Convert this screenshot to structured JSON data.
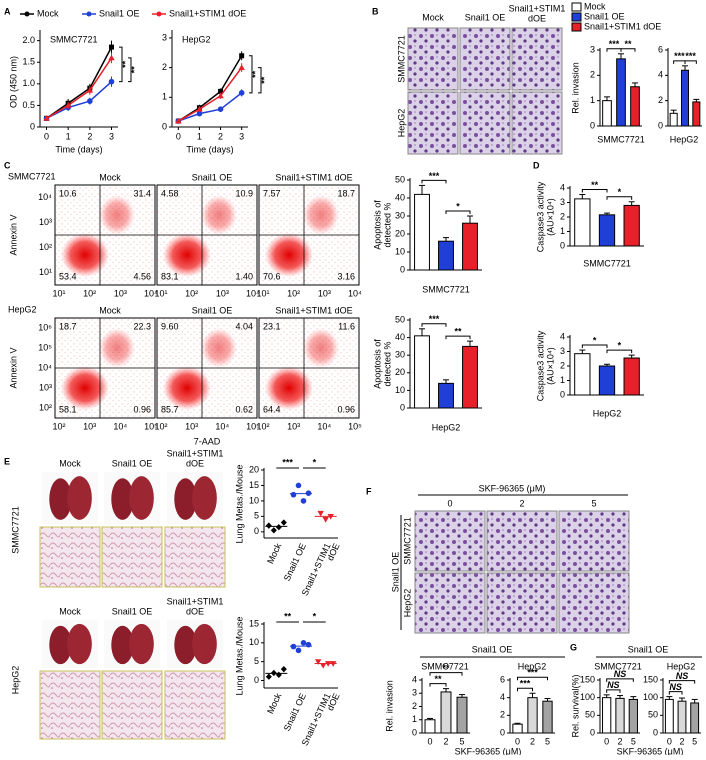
{
  "A": {
    "label": "A",
    "ylabel": "OD (450 nm)",
    "legend": [
      {
        "name": "Mock",
        "color": "#000000"
      },
      {
        "name": "Snail1 OE",
        "color": "#1f3fd6"
      },
      {
        "name": "Snail1+STIM1 dOE",
        "color": "#e8202a"
      }
    ],
    "charts": [
      {
        "title": "SMMC7721",
        "xlabel": "Time (days)",
        "x": [
          0,
          1,
          2,
          3
        ],
        "xlim": [
          -0.3,
          3.3
        ],
        "xticks": [
          0,
          1,
          2,
          3
        ],
        "ylim": [
          0,
          2.2
        ],
        "yticks": [
          0,
          0.5,
          {
            "value": 1,
            "label": "1.0"
          },
          1.5,
          {
            "value": 2,
            "label": "2.0"
          }
        ],
        "series": [
          {
            "values": [
              0.2,
              0.55,
              0.9,
              1.85
            ],
            "errors": [
              0.05,
              0.1,
              0.1,
              0.15
            ]
          },
          {
            "values": [
              0.2,
              0.45,
              0.6,
              1.05
            ],
            "errors": [
              0.05,
              0.08,
              0.08,
              0.12
            ]
          },
          {
            "values": [
              0.2,
              0.5,
              0.85,
              1.6
            ],
            "errors": [
              0.05,
              0.08,
              0.1,
              0.12
            ]
          }
        ],
        "sig": [
          "**",
          "**"
        ]
      },
      {
        "title": "HepG2",
        "xlabel": "Time (days)",
        "x": [
          0,
          1,
          2,
          3
        ],
        "xlim": [
          -0.3,
          3.3
        ],
        "xticks": [
          0,
          1,
          2,
          3
        ],
        "ylim": [
          0,
          3.2
        ],
        "yticks": [
          0,
          1,
          2,
          3
        ],
        "series": [
          {
            "values": [
              0.2,
              0.65,
              1.2,
              2.4
            ],
            "errors": [
              0.05,
              0.1,
              0.1,
              0.15
            ]
          },
          {
            "values": [
              0.2,
              0.45,
              0.6,
              1.15
            ],
            "errors": [
              0.05,
              0.08,
              0.08,
              0.12
            ]
          },
          {
            "values": [
              0.2,
              0.6,
              1.05,
              2.0
            ],
            "errors": [
              0.05,
              0.1,
              0.1,
              0.15
            ]
          }
        ],
        "sig": [
          "**",
          "**"
        ]
      }
    ]
  },
  "B": {
    "label": "B",
    "columns": [
      [
        "Mock"
      ],
      [
        "Snail1 OE"
      ],
      [
        "Snail1+STIM1",
        "dOE"
      ]
    ],
    "rows": [
      "SMMC7721",
      "HepG2"
    ],
    "ylabel": "Rel. invasion",
    "legend": [
      {
        "name": "Mock",
        "color": "#ffffff"
      },
      {
        "name": "Snail1 OE",
        "color": "#1f3fd6"
      },
      {
        "name": "Snail1+STIM1 dOE",
        "color": "#e8202a"
      }
    ],
    "charts": [
      {
        "title": "SMMC7721",
        "ylim": [
          0,
          3
        ],
        "yticks": [
          0,
          1,
          2,
          3
        ],
        "values": [
          1,
          2.65,
          1.55
        ],
        "errors": [
          0.15,
          0.2,
          0.15
        ],
        "sig": [
          "***",
          "**"
        ]
      },
      {
        "title": "HepG2",
        "ylim": [
          0,
          6
        ],
        "yticks": [
          0,
          2,
          4,
          6
        ],
        "values": [
          1,
          4.4,
          1.9
        ],
        "errors": [
          0.25,
          0.35,
          0.2
        ],
        "sig": [
          "***",
          "***"
        ]
      }
    ]
  },
  "C": {
    "label": "C",
    "ylabel": "Annexin V",
    "xlabel": "7-AAD",
    "rows": [
      {
        "name": "SMMC7721",
        "xticks": [
          "10¹",
          "10²",
          "10³",
          "10⁴"
        ],
        "yticks": [
          "10¹",
          "10²",
          "10³",
          "10⁴"
        ],
        "plots": [
          {
            "title": "Mock",
            "quadrants": [
              "10.6",
              "31.4",
              "53.4",
              "4.56"
            ]
          },
          {
            "title": "Snail1 OE",
            "quadrants": [
              "4.58",
              "10.9",
              "83.1",
              "1.40"
            ]
          },
          {
            "title": "Snail1+STIM1 dOE",
            "quadrants": [
              "7.57",
              "18.7",
              "70.6",
              "3.16"
            ]
          }
        ]
      },
      {
        "name": "HepG2",
        "xticks": [
          "10²",
          "10³",
          "10⁴",
          "10⁵"
        ],
        "yticks": [
          "10²",
          "10³",
          "10⁴",
          "10⁵",
          "10⁶"
        ],
        "plots": [
          {
            "title": "Mock",
            "quadrants": [
              "18.7",
              "22.3",
              "58.1",
              "0.96"
            ]
          },
          {
            "title": "Snail1 OE",
            "quadrants": [
              "9.60",
              "4.04",
              "85.7",
              "0.62"
            ]
          },
          {
            "title": "Snail1+STIM1 dOE",
            "quadrants": [
              "23.1",
              "11.6",
              "64.4",
              "0.96"
            ]
          }
        ]
      }
    ],
    "bar_ylabel": [
      "Apoptosis of",
      "detected %"
    ],
    "colors": [
      "#ffffff",
      "#1f3fd6",
      "#e8202a"
    ],
    "charts": [
      {
        "title": "SMMC7721",
        "ylim": [
          0,
          50
        ],
        "yticks": [
          0,
          10,
          20,
          30,
          40,
          50
        ],
        "values": [
          42,
          16,
          26
        ],
        "errors": [
          5,
          2,
          4
        ],
        "sig": [
          "***",
          "*"
        ]
      },
      {
        "title": "HepG2",
        "ylim": [
          0,
          50
        ],
        "yticks": [
          0,
          10,
          20,
          30,
          40,
          50
        ],
        "values": [
          41,
          14,
          35
        ],
        "errors": [
          4,
          2,
          3
        ],
        "sig": [
          "***",
          "**"
        ]
      }
    ]
  },
  "D": {
    "label": "D",
    "ylabel": [
      "Caspase3 activity",
      "(AU×10⁴)"
    ],
    "colors": [
      "#ffffff",
      "#1f3fd6",
      "#e8202a"
    ],
    "charts": [
      {
        "title": "SMMC7721",
        "ylim": [
          0,
          4
        ],
        "yticks": [
          0,
          1,
          2,
          3,
          4
        ],
        "values": [
          3.25,
          2.15,
          2.8
        ],
        "errors": [
          0.3,
          0.12,
          0.25
        ],
        "sig": [
          "**",
          "*"
        ]
      },
      {
        "title": "HepG2",
        "ylim": [
          0,
          4
        ],
        "yticks": [
          0,
          1,
          2,
          3,
          4
        ],
        "values": [
          2.85,
          2.0,
          2.55
        ],
        "errors": [
          0.25,
          0.12,
          0.2
        ],
        "sig": [
          "*",
          "*"
        ]
      }
    ]
  },
  "E": {
    "label": "E",
    "columns": [
      [
        "Mock"
      ],
      [
        "Snail1 OE"
      ],
      [
        "Snail1+STIM1",
        "dOE"
      ]
    ],
    "rows": [
      "SMMC7721",
      "HepG2"
    ],
    "ylabel": "Lung Metas./Mouse",
    "colors": [
      "#000000",
      "#1f3fd6",
      "#e8202a"
    ],
    "categories": [
      [
        "Mock"
      ],
      [
        "Snail1 OE"
      ],
      [
        "Snail1+STIM1",
        "dOE"
      ]
    ],
    "charts": [
      {
        "ylim": [
          -2,
          20
        ],
        "yticks": [
          0,
          5,
          10,
          15,
          20
        ],
        "groups": [
          [
            2,
            0.5,
            1.5,
            3
          ],
          [
            12,
            15,
            10,
            12.5
          ],
          [
            6,
            4,
            5
          ]
        ],
        "sig": [
          "***",
          "*"
        ]
      },
      {
        "ylim": [
          -2,
          15
        ],
        "yticks": [
          0,
          5,
          10,
          15
        ],
        "groups": [
          [
            1,
            2,
            1.5,
            3
          ],
          [
            9,
            8,
            10,
            9.5
          ],
          [
            5,
            4,
            4.5,
            4.5
          ]
        ],
        "sig": [
          "**",
          "*"
        ]
      }
    ]
  },
  "F": {
    "label": "F",
    "title": "SKF-96365 (μM)",
    "columns": [
      "0",
      "2",
      "5"
    ],
    "rows": [
      "SMMC7721",
      "HepG2"
    ],
    "group": "Snail1 OE",
    "bar_group": "Snail1 OE",
    "ylabel": "Rel. invasion",
    "xlabel": "SKF-96365 (μM)",
    "colors": [
      "#ffffff",
      "#d9d9d9",
      "#a3a3a3"
    ],
    "charts": [
      {
        "title": "SMMC7721",
        "categories": [
          "0",
          "2",
          "5"
        ],
        "ylim": [
          0,
          4
        ],
        "yticks": [
          0,
          1,
          2,
          3,
          4
        ],
        "values": [
          1,
          3.1,
          2.7
        ],
        "errors": [
          0.1,
          0.25,
          0.2
        ],
        "sig": [
          "**",
          "**"
        ]
      },
      {
        "title": "HepG2",
        "categories": [
          "0",
          "2",
          "5"
        ],
        "ylim": [
          0,
          6
        ],
        "yticks": [
          0,
          2,
          4,
          6
        ],
        "values": [
          1,
          4,
          3.6
        ],
        "errors": [
          0.1,
          0.5,
          0.3
        ],
        "sig": [
          "***",
          "***"
        ]
      }
    ]
  },
  "G": {
    "label": "G",
    "bar_group": "Snail1 OE",
    "ylabel": "Rel. survival(%)",
    "xlabel": "SKF-96365 (μM)",
    "colors": [
      "#ffffff",
      "#d9d9d9",
      "#a3a3a3"
    ],
    "charts": [
      {
        "title": "SMMC7721",
        "categories": [
          "0",
          "2",
          "5"
        ],
        "ylim": [
          0,
          150
        ],
        "yticks": [
          0,
          50,
          100,
          150
        ],
        "values": [
          100,
          98,
          95
        ],
        "errors": [
          8,
          8,
          8
        ],
        "sig": [
          "NS",
          "NS"
        ]
      },
      {
        "title": "HepG2",
        "categories": [
          "0",
          "2",
          "5"
        ],
        "ylim": [
          0,
          150
        ],
        "yticks": [
          0,
          50,
          100,
          150
        ],
        "values": [
          95,
          90,
          85
        ],
        "errors": [
          8,
          9,
          10
        ],
        "sig": [
          "NS",
          "NS"
        ]
      }
    ]
  }
}
